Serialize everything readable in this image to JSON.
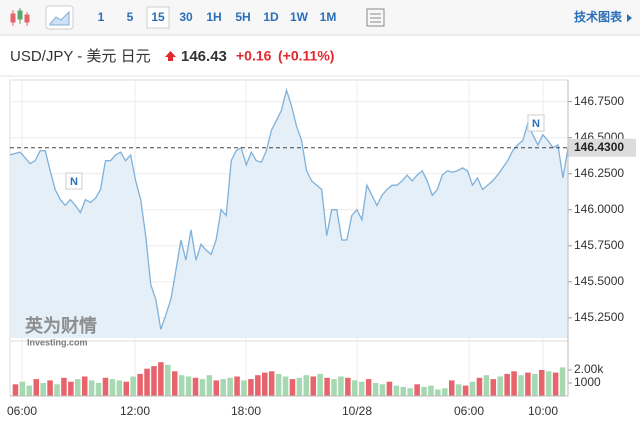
{
  "toolbar": {
    "intervals": [
      "1",
      "5",
      "15",
      "30",
      "1H",
      "5H",
      "1D",
      "1W",
      "1M"
    ],
    "selected": "15",
    "right_link": "技术图表"
  },
  "header": {
    "pair": "USD/JPY - 美元 日元",
    "price": "146.43",
    "change": "+0.16",
    "change_pct": "(+0.11%)"
  },
  "watermark": {
    "cn": "英为财情",
    "en": "Investing.com"
  },
  "annotations": [
    "N",
    "N"
  ],
  "chart_data": {
    "type": "line",
    "line_color": "#7fb1da",
    "fill_color": "#e4eff8",
    "values": [
      146.38,
      146.39,
      146.4,
      146.36,
      146.32,
      146.34,
      146.41,
      146.41,
      146.27,
      146.14,
      146.07,
      146.03,
      146.07,
      146.03,
      145.98,
      146.07,
      146.05,
      146.08,
      146.14,
      146.34,
      146.34,
      146.38,
      146.4,
      146.34,
      146.38,
      146.2,
      146.07,
      145.82,
      145.48,
      145.38,
      145.17,
      145.27,
      145.38,
      145.58,
      145.79,
      145.65,
      145.86,
      145.65,
      145.76,
      145.72,
      145.69,
      145.79,
      146.0,
      145.96,
      146.34,
      146.41,
      146.43,
      146.31,
      146.4,
      146.34,
      146.33,
      146.41,
      146.55,
      146.62,
      146.69,
      146.83,
      146.72,
      146.58,
      146.48,
      146.27,
      146.2,
      146.17,
      146.14,
      145.82,
      146.0,
      146.0,
      145.79,
      145.79,
      145.96,
      146.0,
      145.93,
      146.17,
      146.1,
      146.03,
      146.1,
      146.14,
      146.17,
      146.17,
      146.2,
      146.24,
      146.2,
      146.24,
      146.27,
      146.2,
      146.1,
      146.14,
      146.24,
      146.27,
      146.26,
      146.27,
      146.29,
      146.27,
      146.17,
      146.22,
      146.14,
      146.17,
      146.2,
      146.24,
      146.29,
      146.34,
      146.41,
      146.45,
      146.48,
      146.6,
      146.52,
      146.45,
      146.52,
      146.48,
      146.43,
      146.45,
      146.22,
      146.43
    ],
    "ylim": [
      145.11,
      146.9
    ],
    "yticks": [
      {
        "value": 145.25,
        "label": "145.2500"
      },
      {
        "value": 145.5,
        "label": "145.5000"
      },
      {
        "value": 145.75,
        "label": "145.7500"
      },
      {
        "value": 146,
        "label": "146.0000"
      },
      {
        "value": 146.25,
        "label": "146.2500"
      },
      {
        "value": 146.5,
        "label": "146.5000"
      },
      {
        "value": 146.75,
        "label": "146.7500"
      }
    ],
    "last_price": {
      "value": 146.43,
      "label": "146.4300"
    },
    "xticks": [
      "06:00",
      "12:00",
      "18:00",
      "10/28",
      "06:00",
      "10:00"
    ],
    "grid": true,
    "volume": {
      "values": [
        900,
        1100,
        800,
        1300,
        1000,
        1200,
        900,
        1400,
        1100,
        1300,
        1500,
        1200,
        1000,
        1400,
        1300,
        1200,
        1100,
        1500,
        1700,
        2100,
        2300,
        2600,
        2400,
        1900,
        1600,
        1500,
        1400,
        1300,
        1600,
        1200,
        1300,
        1400,
        1500,
        1200,
        1300,
        1600,
        1800,
        1900,
        1700,
        1500,
        1300,
        1400,
        1600,
        1500,
        1700,
        1400,
        1300,
        1500,
        1400,
        1200,
        1100,
        1300,
        1000,
        900,
        1100,
        800,
        700,
        600,
        900,
        700,
        800,
        500,
        600,
        1200,
        900,
        800,
        1100,
        1400,
        1600,
        1300,
        1500,
        1700,
        1900,
        1600,
        1800,
        1700,
        2000,
        1900,
        1800,
        2200
      ],
      "colors": [
        "#e8646c",
        "#a6d9b1",
        "#a6d9b1",
        "#e8646c",
        "#a6d9b1",
        "#e8646c",
        "#a6d9b1",
        "#e8646c",
        "#e8646c",
        "#a6d9b1",
        "#e8646c",
        "#a6d9b1",
        "#a6d9b1",
        "#e8646c",
        "#a6d9b1",
        "#a6d9b1",
        "#e8646c",
        "#a6d9b1",
        "#e8646c",
        "#e8646c",
        "#e8646c",
        "#e8646c",
        "#a6d9b1",
        "#e8646c",
        "#a6d9b1",
        "#a6d9b1",
        "#e8646c",
        "#a6d9b1",
        "#a6d9b1",
        "#e8646c",
        "#a6d9b1",
        "#a6d9b1",
        "#e8646c",
        "#a6d9b1",
        "#e8646c",
        "#e8646c",
        "#e8646c",
        "#e8646c",
        "#a6d9b1",
        "#a6d9b1",
        "#e8646c",
        "#a6d9b1",
        "#a6d9b1",
        "#e8646c",
        "#a6d9b1",
        "#e8646c",
        "#a6d9b1",
        "#a6d9b1",
        "#e8646c",
        "#a6d9b1",
        "#a6d9b1",
        "#e8646c",
        "#a6d9b1",
        "#a6d9b1",
        "#e8646c",
        "#a6d9b1",
        "#a6d9b1",
        "#a6d9b1",
        "#e8646c",
        "#a6d9b1",
        "#a6d9b1",
        "#a6d9b1",
        "#a6d9b1",
        "#e8646c",
        "#a6d9b1",
        "#e8646c",
        "#a6d9b1",
        "#e8646c",
        "#a6d9b1",
        "#e8646c",
        "#a6d9b1",
        "#e8646c",
        "#e8646c",
        "#a6d9b1",
        "#e8646c",
        "#a6d9b1",
        "#e8646c",
        "#a6d9b1",
        "#e8646c",
        "#a6d9b1"
      ],
      "ylim": [
        0,
        4000
      ],
      "yticks": [
        1000,
        {
          "value": 2000,
          "label": "2.00k"
        }
      ]
    }
  }
}
